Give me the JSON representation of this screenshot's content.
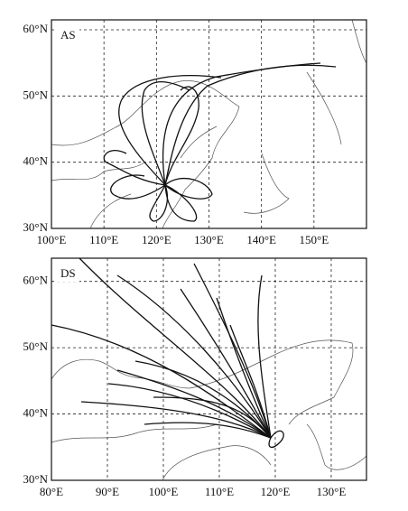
{
  "panels": [
    {
      "label": "AS",
      "xlim": [
        100,
        160
      ],
      "ylim": [
        30,
        61.5
      ],
      "xticks": [
        {
          "value": 100,
          "label": "100°E"
        },
        {
          "value": 110,
          "label": "110°E"
        },
        {
          "value": 120,
          "label": "120°E"
        },
        {
          "value": 130,
          "label": "130°E"
        },
        {
          "value": 140,
          "label": "140°E"
        },
        {
          "value": 150,
          "label": "150°E"
        }
      ],
      "yticks": [
        {
          "value": 30,
          "label": "30°N"
        },
        {
          "value": 40,
          "label": "40°N"
        },
        {
          "value": 50,
          "label": "50°N"
        },
        {
          "value": 60,
          "label": "60°N"
        }
      ]
    },
    {
      "label": "DS",
      "xlim": [
        80,
        136.3
      ],
      "ylim": [
        30,
        63.5
      ],
      "xticks": [
        {
          "value": 80,
          "label": "80°E"
        },
        {
          "value": 90,
          "label": "90°E"
        },
        {
          "value": 100,
          "label": "100°E"
        },
        {
          "value": 110,
          "label": "110°E"
        },
        {
          "value": 120,
          "label": "120°E"
        },
        {
          "value": 130,
          "label": "130°E"
        }
      ],
      "yticks": [
        {
          "value": 30,
          "label": "30°N"
        },
        {
          "value": 40,
          "label": "40°N"
        },
        {
          "value": 50,
          "label": "50°N"
        },
        {
          "value": 60,
          "label": "60°N"
        }
      ]
    }
  ]
}
